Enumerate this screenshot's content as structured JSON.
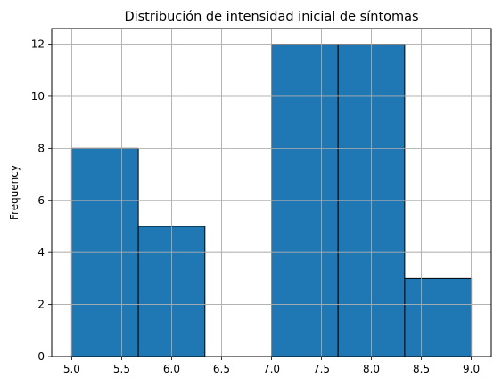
{
  "chart_data": {
    "type": "bar",
    "title": "Distribución de intensidad inicial de síntomas",
    "xlabel": "",
    "ylabel": "Frequency",
    "bins": [
      {
        "x0": 5.0,
        "x1": 5.6667,
        "count": 8
      },
      {
        "x0": 5.6667,
        "x1": 6.3333,
        "count": 5
      },
      {
        "x0": 6.3333,
        "x1": 7.0,
        "count": 0
      },
      {
        "x0": 7.0,
        "x1": 7.6667,
        "count": 12
      },
      {
        "x0": 7.6667,
        "x1": 8.3333,
        "count": 12
      },
      {
        "x0": 8.3333,
        "x1": 9.0,
        "count": 3
      }
    ],
    "xlim": [
      4.8,
      9.2
    ],
    "ylim": [
      0,
      12.6
    ],
    "xticks": [
      5.0,
      5.5,
      6.0,
      6.5,
      7.0,
      7.5,
      8.0,
      8.5,
      9.0
    ],
    "xtick_labels": [
      "5.0",
      "5.5",
      "6.0",
      "6.5",
      "7.0",
      "7.5",
      "8.0",
      "8.5",
      "9.0"
    ],
    "yticks": [
      0,
      2,
      4,
      6,
      8,
      10,
      12
    ],
    "ytick_labels": [
      "0",
      "2",
      "4",
      "6",
      "8",
      "10",
      "12"
    ],
    "grid": true,
    "colors": {
      "bar_fill": "#1f77b4",
      "bar_edge": "#000000",
      "grid": "#b0b0b0"
    }
  }
}
